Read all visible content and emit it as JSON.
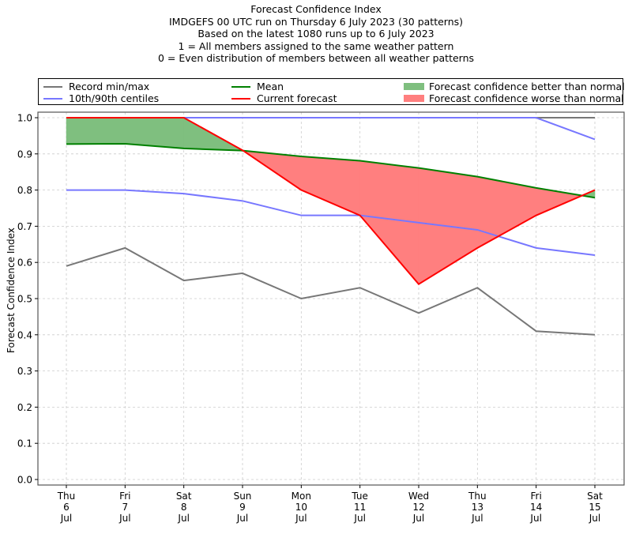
{
  "chart_data": {
    "type": "line",
    "title_lines": [
      "Forecast Confidence Index",
      "IMDGEFS 00 UTC run on Thursday 6 July 2023 (30 patterns)",
      "Based on the latest 1080 runs up to 6 July 2023",
      "1 = All members assigned to the same weather pattern",
      "0 = Even distribution of members between all weather patterns"
    ],
    "xlabel": "",
    "ylabel": "Forecast Confidence Index",
    "ylim": [
      0.0,
      1.0
    ],
    "yticks": [
      "0.0",
      "0.1",
      "0.2",
      "0.3",
      "0.4",
      "0.5",
      "0.6",
      "0.7",
      "0.8",
      "0.9",
      "1.0"
    ],
    "grid": true,
    "legend_position": "top (above plot, 3 columns)",
    "categories": [
      [
        "Thu",
        "6",
        "Jul"
      ],
      [
        "Fri",
        "7",
        "Jul"
      ],
      [
        "Sat",
        "8",
        "Jul"
      ],
      [
        "Sun",
        "9",
        "Jul"
      ],
      [
        "Mon",
        "10",
        "Jul"
      ],
      [
        "Tue",
        "11",
        "Jul"
      ],
      [
        "Wed",
        "12",
        "Jul"
      ],
      [
        "Thu",
        "13",
        "Jul"
      ],
      [
        "Fri",
        "14",
        "Jul"
      ],
      [
        "Sat",
        "15",
        "Jul"
      ]
    ],
    "series": [
      {
        "name": "Record max",
        "legend_group": "Record min/max",
        "color": "#777777",
        "values": [
          1.0,
          1.0,
          1.0,
          1.0,
          1.0,
          1.0,
          1.0,
          1.0,
          1.0,
          1.0
        ]
      },
      {
        "name": "Record min",
        "legend_group": "Record min/max",
        "color": "#777777",
        "values": [
          0.59,
          0.64,
          0.55,
          0.57,
          0.5,
          0.53,
          0.46,
          0.53,
          0.41,
          0.4
        ]
      },
      {
        "name": "90th centile",
        "legend_group": "10th/90th centiles",
        "color": "#7777ff",
        "values": [
          1.0,
          1.0,
          1.0,
          1.0,
          1.0,
          1.0,
          1.0,
          1.0,
          1.0,
          0.94
        ]
      },
      {
        "name": "10th centile",
        "legend_group": "10th/90th centiles",
        "color": "#7777ff",
        "values": [
          0.8,
          0.8,
          0.79,
          0.77,
          0.73,
          0.73,
          0.71,
          0.69,
          0.64,
          0.62
        ]
      },
      {
        "name": "Mean",
        "color": "#008000",
        "values": [
          0.927,
          0.928,
          0.915,
          0.909,
          0.893,
          0.881,
          0.861,
          0.837,
          0.806,
          0.779
        ]
      },
      {
        "name": "Current forecast",
        "color": "#ff0000",
        "values": [
          1.0,
          1.0,
          1.0,
          0.91,
          0.8,
          0.73,
          0.54,
          0.64,
          0.73,
          0.8
        ]
      }
    ],
    "fills": [
      {
        "name": "Forecast confidence better than normal",
        "color": "#7fbf7f",
        "rule": "current > mean"
      },
      {
        "name": "Forecast confidence worse than normal",
        "color": "#ff7f7f",
        "rule": "current < mean"
      }
    ],
    "legend": [
      {
        "label": "Record min/max",
        "kind": "line",
        "color": "#777777"
      },
      {
        "label": "10th/90th centiles",
        "kind": "line",
        "color": "#7777ff"
      },
      {
        "label": "Mean",
        "kind": "line",
        "color": "#008000"
      },
      {
        "label": "Current forecast",
        "kind": "line",
        "color": "#ff0000"
      },
      {
        "label": "Forecast confidence better than normal",
        "kind": "patch",
        "color": "#7fbf7f"
      },
      {
        "label": "Forecast confidence worse than normal",
        "kind": "patch",
        "color": "#ff7f7f"
      }
    ]
  }
}
